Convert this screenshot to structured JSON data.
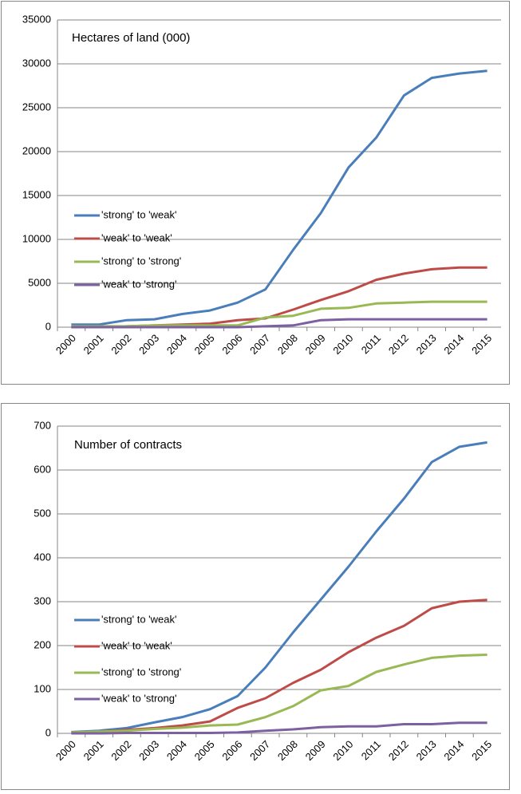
{
  "chart_data": [
    {
      "type": "line",
      "title": "Hectares of land (000)",
      "categories": [
        "2000",
        "2001",
        "2002",
        "2003",
        "2004",
        "2005",
        "2006",
        "2007",
        "2008",
        "2009",
        "2010",
        "2011",
        "2012",
        "2013",
        "2014",
        "2015"
      ],
      "series": [
        {
          "name": "'strong' to 'weak'",
          "color": "#4a7ebb",
          "values": [
            300,
            300,
            800,
            900,
            1500,
            1900,
            2800,
            4300,
            8800,
            13000,
            18200,
            21600,
            26400,
            28400,
            28900,
            29200
          ]
        },
        {
          "name": "'weak' to 'weak'",
          "color": "#be4b48",
          "values": [
            0,
            0,
            100,
            200,
            300,
            400,
            800,
            1000,
            2000,
            3100,
            4100,
            5400,
            6100,
            6600,
            6800,
            6800
          ]
        },
        {
          "name": "'strong' to 'strong'",
          "color": "#98b954",
          "values": [
            100,
            100,
            100,
            200,
            200,
            200,
            200,
            1100,
            1300,
            2100,
            2200,
            2700,
            2800,
            2900,
            2900,
            2900
          ]
        },
        {
          "name": "'weak' to 'strong'",
          "color": "#7d60a0",
          "values": [
            0,
            0,
            0,
            0,
            0,
            0,
            0,
            100,
            200,
            800,
            900,
            900,
            900,
            900,
            900,
            900
          ]
        }
      ],
      "ylim": [
        0,
        35000
      ],
      "yticks": [
        0,
        5000,
        10000,
        15000,
        20000,
        25000,
        30000,
        35000
      ],
      "grid": true,
      "legend": "left"
    },
    {
      "type": "line",
      "title": "Number of contracts",
      "categories": [
        "2000",
        "2001",
        "2002",
        "2003",
        "2004",
        "2005",
        "2006",
        "2007",
        "2008",
        "2009",
        "2010",
        "2011",
        "2012",
        "2013",
        "2014",
        "2015"
      ],
      "series": [
        {
          "name": "'strong' to 'weak'",
          "color": "#4a7ebb",
          "values": [
            3,
            6,
            12,
            25,
            37,
            55,
            85,
            150,
            230,
            305,
            380,
            460,
            535,
            618,
            653,
            663
          ]
        },
        {
          "name": "'weak' to 'weak'",
          "color": "#be4b48",
          "values": [
            2,
            4,
            8,
            12,
            18,
            27,
            58,
            80,
            115,
            145,
            185,
            218,
            245,
            285,
            300,
            304
          ]
        },
        {
          "name": "'strong' to 'strong'",
          "color": "#98b954",
          "values": [
            2,
            4,
            6,
            10,
            13,
            18,
            20,
            37,
            62,
            98,
            108,
            140,
            157,
            172,
            177,
            179
          ]
        },
        {
          "name": "'weak' to 'strong'",
          "color": "#7d60a0",
          "values": [
            0,
            0,
            1,
            1,
            1,
            1,
            2,
            6,
            9,
            14,
            16,
            16,
            21,
            21,
            24,
            24
          ]
        }
      ],
      "ylim": [
        0,
        700
      ],
      "yticks": [
        0,
        100,
        200,
        300,
        400,
        500,
        600,
        700
      ],
      "grid": true,
      "legend": "left"
    }
  ]
}
